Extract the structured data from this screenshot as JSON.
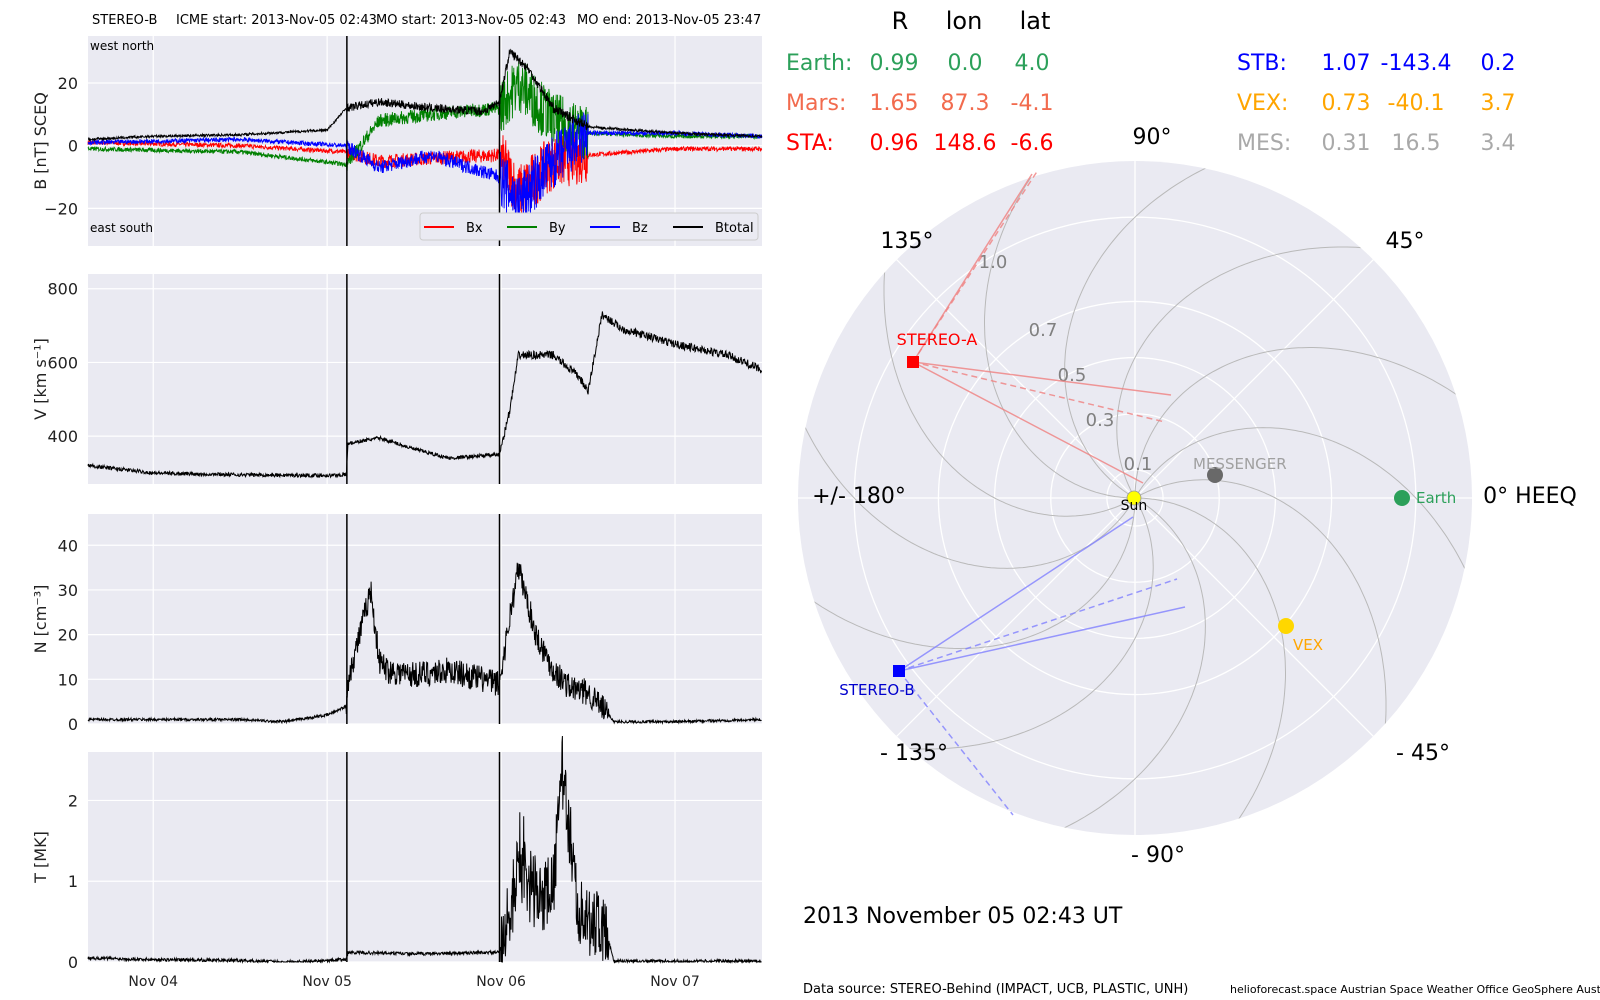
{
  "header": {
    "spacecraft": "STEREO-B",
    "icme_start": "ICME start: 2013-Nov-05 02:43",
    "mo_start": "MO start: 2013-Nov-05 02:43",
    "mo_end": "MO end: 2013-Nov-05 23:47"
  },
  "panel_b": {
    "ylabel": "B [nT] SCEQ",
    "corner_top": "west    north",
    "corner_bottom": "east    south",
    "legend": [
      "Bx",
      "By",
      "Bz",
      "Btotal"
    ]
  },
  "panel_v": {
    "ylabel": "V [km s⁻¹]"
  },
  "panel_n": {
    "ylabel": "N [cm⁻³]"
  },
  "panel_t": {
    "ylabel": "T [MK]"
  },
  "xticks": [
    "Nov 04",
    "Nov 05",
    "Nov 06",
    "Nov 07"
  ],
  "positions_table": {
    "header": [
      "R",
      "lon",
      "lat"
    ],
    "left": [
      {
        "name": "Earth:",
        "R": "0.99",
        "lon": "0.0",
        "lat": "4.0",
        "color": "#2ca05a"
      },
      {
        "name": "Mars:",
        "R": "1.65",
        "lon": "87.3",
        "lat": "-4.1",
        "color": "#f26b4e"
      },
      {
        "name": "STA:",
        "R": "0.96",
        "lon": "148.6",
        "lat": "-6.6",
        "color": "#ff0000"
      }
    ],
    "right": [
      {
        "name": "STB:",
        "R": "1.07",
        "lon": "-143.4",
        "lat": "0.2",
        "color": "#0000ff"
      },
      {
        "name": "VEX:",
        "R": "0.73",
        "lon": "-40.1",
        "lat": "3.7",
        "color": "#ffa500"
      },
      {
        "name": "MES:",
        "R": "0.31",
        "lon": "16.5",
        "lat": "3.4",
        "color": "#a9a9a9"
      }
    ]
  },
  "polar": {
    "angle_labels": [
      "90°",
      "45°",
      "0° HEEQ",
      "- 45°",
      "- 90°",
      "- 135°",
      "+/- 180°",
      "135°"
    ],
    "radius_labels": [
      "0.1",
      "0.3",
      "0.5",
      "0.7",
      "1.0"
    ],
    "bodies": {
      "sun": "Sun",
      "earth": "Earth",
      "messenger": "MESSENGER",
      "vex": "VEX",
      "stereo_a": "STEREO-A",
      "stereo_b": "STEREO-B"
    },
    "date": "2013 November 05  02:43 UT"
  },
  "footer": {
    "source": "Data source: STEREO-Behind (IMPACT, UCB, PLASTIC, UNH)",
    "credits": "helioforecast.space   Austrian Space Weather Office   GeoSphere Austria"
  },
  "colors": {
    "bx": "#ff0000",
    "by": "#008000",
    "bz": "#0000ff",
    "btotal": "#000000",
    "panel_bg": "#eaeaf2",
    "sun": "#ffff00",
    "earth": "#2ca05a",
    "messenger": "#696969",
    "vex": "#ffd700"
  },
  "chart_data": [
    {
      "type": "line",
      "ylabel": "B [nT] SCEQ",
      "x_range": [
        "2013-11-03T15:00",
        "2013-11-07T12:00"
      ],
      "ylim": [
        -32,
        35
      ],
      "event_markers": [
        "2013-11-05T02:43",
        "2013-11-05T23:47"
      ],
      "series": [
        {
          "name": "Btotal",
          "x_days": [
            3.63,
            4.0,
            4.5,
            5.0,
            5.11,
            5.3,
            5.6,
            5.9,
            5.99,
            6.05,
            6.15,
            6.3,
            6.5,
            7.0,
            7.5
          ],
          "values": [
            2,
            3,
            3.5,
            5,
            12,
            14,
            12,
            11,
            14,
            30,
            25,
            12,
            6,
            4,
            3
          ]
        },
        {
          "name": "Bx",
          "x_days": [
            3.63,
            4.5,
            5.11,
            5.3,
            5.6,
            5.99,
            6.1,
            6.3,
            6.5,
            7.0,
            7.5
          ],
          "values": [
            1,
            0,
            -2,
            -5,
            -4,
            -3,
            -15,
            -5,
            -3,
            -1,
            -1
          ]
        },
        {
          "name": "By",
          "x_days": [
            3.63,
            4.5,
            5.11,
            5.3,
            5.6,
            5.99,
            6.1,
            6.3,
            6.5,
            7.0,
            7.5
          ],
          "values": [
            -1,
            -2,
            -6,
            8,
            10,
            12,
            20,
            8,
            4,
            3,
            3
          ]
        },
        {
          "name": "Bz",
          "x_days": [
            3.63,
            4.5,
            5.11,
            5.3,
            5.6,
            5.99,
            6.1,
            6.3,
            6.5,
            7.0,
            7.5
          ],
          "values": [
            1,
            2,
            0,
            -7,
            -3,
            -10,
            -18,
            -5,
            4,
            4,
            3
          ]
        }
      ]
    },
    {
      "type": "line",
      "ylabel": "V [km s⁻¹]",
      "ylim": [
        270,
        840
      ],
      "x_days": [
        3.63,
        4.0,
        4.5,
        5.0,
        5.11,
        5.12,
        5.3,
        5.5,
        5.7,
        5.99,
        6.05,
        6.1,
        6.3,
        6.45,
        6.5,
        6.58,
        6.7,
        7.0,
        7.3,
        7.5
      ],
      "values": [
        320,
        300,
        295,
        293,
        295,
        380,
        395,
        365,
        340,
        350,
        470,
        620,
        620,
        560,
        520,
        730,
        690,
        650,
        620,
        580
      ]
    },
    {
      "type": "line",
      "ylabel": "N [cm⁻³]",
      "ylim": [
        0,
        47
      ],
      "x_days": [
        3.63,
        4.0,
        4.5,
        4.75,
        5.0,
        5.11,
        5.12,
        5.2,
        5.25,
        5.3,
        5.35,
        5.5,
        5.7,
        5.99,
        6.05,
        6.1,
        6.2,
        6.3,
        6.4,
        6.5,
        6.62,
        6.65,
        7.0,
        7.5
      ],
      "values": [
        1,
        1,
        1,
        0.5,
        2,
        4,
        10,
        22,
        30,
        14,
        12,
        11,
        12,
        9,
        24,
        35,
        20,
        12,
        8,
        7,
        2,
        0.5,
        0.5,
        1
      ]
    },
    {
      "type": "line",
      "ylabel": "T [MK]",
      "ylim": [
        0,
        2.6
      ],
      "x_days": [
        3.63,
        4.0,
        4.5,
        4.75,
        5.0,
        5.11,
        5.12,
        5.5,
        5.99,
        6.05,
        6.1,
        6.2,
        6.3,
        6.35,
        6.45,
        6.6,
        6.65,
        7.0,
        7.5
      ],
      "values": [
        0.05,
        0.03,
        0.02,
        0.0,
        0.02,
        0.03,
        0.12,
        0.1,
        0.12,
        0.6,
        1.2,
        0.8,
        0.9,
        2.4,
        0.6,
        0.4,
        0.01,
        0.01,
        0.01
      ]
    }
  ]
}
